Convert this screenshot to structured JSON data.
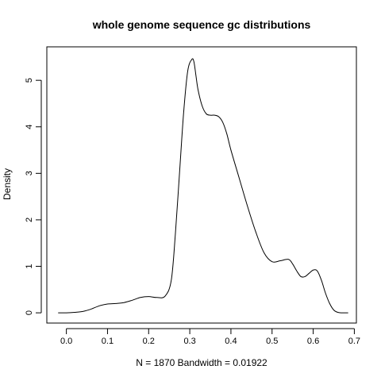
{
  "chart_data": {
    "type": "line",
    "title": "whole genome sequence gc distributions",
    "xlabel": "N = 1870   Bandwidth = 0.01922",
    "ylabel": "Density",
    "xlim": [
      -0.0475,
      0.705
    ],
    "ylim": [
      -0.22,
      5.72
    ],
    "x_ticks": [
      {
        "value": 0.0,
        "label": "0.0"
      },
      {
        "value": 0.1,
        "label": "0.1"
      },
      {
        "value": 0.2,
        "label": "0.2"
      },
      {
        "value": 0.3,
        "label": "0.3"
      },
      {
        "value": 0.4,
        "label": "0.4"
      },
      {
        "value": 0.5,
        "label": "0.5"
      },
      {
        "value": 0.6,
        "label": "0.6"
      },
      {
        "value": 0.7,
        "label": "0.7"
      }
    ],
    "y_ticks": [
      {
        "value": 0,
        "label": "0"
      },
      {
        "value": 1,
        "label": "1"
      },
      {
        "value": 2,
        "label": "2"
      },
      {
        "value": 3,
        "label": "3"
      },
      {
        "value": 4,
        "label": "4"
      },
      {
        "value": 5,
        "label": "5"
      }
    ],
    "grid": false,
    "series": [
      {
        "x": [
          -0.02,
          0.0,
          0.02,
          0.04,
          0.06,
          0.08,
          0.1,
          0.12,
          0.14,
          0.16,
          0.18,
          0.2,
          0.22,
          0.24,
          0.255,
          0.265,
          0.275,
          0.285,
          0.295,
          0.305,
          0.31,
          0.315,
          0.32,
          0.33,
          0.34,
          0.35,
          0.36,
          0.37,
          0.38,
          0.39,
          0.4,
          0.42,
          0.44,
          0.46,
          0.48,
          0.5,
          0.52,
          0.54,
          0.55,
          0.56,
          0.57,
          0.58,
          0.59,
          0.6,
          0.61,
          0.62,
          0.63,
          0.64,
          0.65,
          0.66,
          0.67,
          0.685
        ],
        "y": [
          0.0,
          0.0,
          0.01,
          0.03,
          0.08,
          0.15,
          0.19,
          0.2,
          0.22,
          0.27,
          0.33,
          0.35,
          0.33,
          0.36,
          0.7,
          1.7,
          3.0,
          4.3,
          5.2,
          5.45,
          5.4,
          5.1,
          4.8,
          4.45,
          4.28,
          4.25,
          4.25,
          4.22,
          4.1,
          3.85,
          3.5,
          2.9,
          2.3,
          1.75,
          1.3,
          1.1,
          1.12,
          1.15,
          1.05,
          0.9,
          0.78,
          0.78,
          0.85,
          0.92,
          0.9,
          0.7,
          0.42,
          0.2,
          0.06,
          0.01,
          0.0,
          0.0
        ]
      }
    ]
  }
}
